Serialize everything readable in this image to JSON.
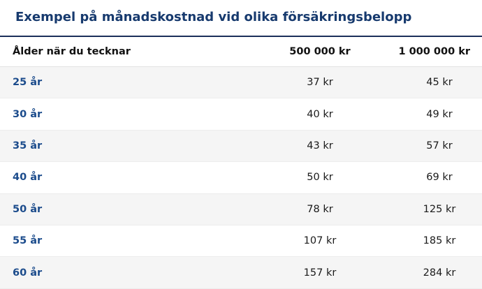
{
  "header": {
    "title": "Exempel på månadskostnad vid olika försäkringsbelopp"
  },
  "table": {
    "columns": [
      "Ålder när du tecknar",
      "500 000 kr",
      "1 000 000 kr"
    ],
    "rows": [
      [
        "25 år",
        "37 kr",
        "45 kr"
      ],
      [
        "30 år",
        "40 kr",
        "49 kr"
      ],
      [
        "35 år",
        "43 kr",
        "57 kr"
      ],
      [
        "40 år",
        "50 kr",
        "69 kr"
      ],
      [
        "50 år",
        "78 kr",
        "125 kr"
      ],
      [
        "55 år",
        "107 kr",
        "185 kr"
      ],
      [
        "60 år",
        "157 kr",
        "284 kr"
      ]
    ]
  }
}
